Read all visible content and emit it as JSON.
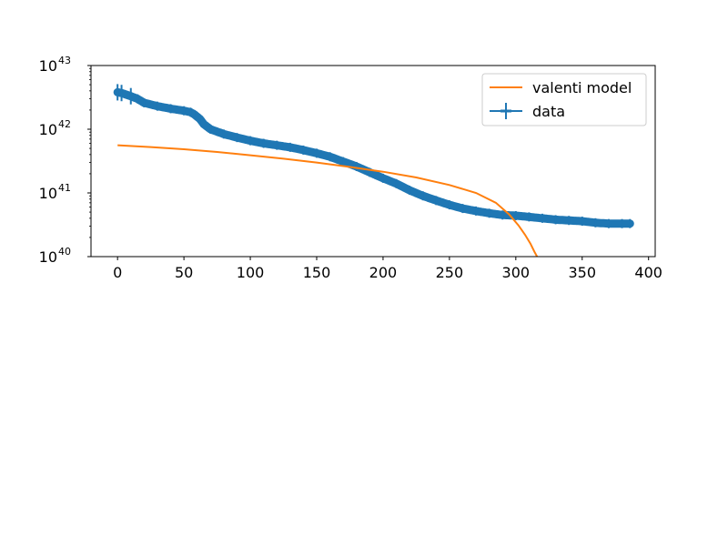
{
  "chart_data": {
    "type": "line",
    "title": "",
    "xlabel": "",
    "ylabel": "",
    "xlim": [
      -20,
      405
    ],
    "ylim": [
      1e+40,
      1e+43
    ],
    "yscale": "log",
    "grid": false,
    "legend_position": "top-right",
    "x_ticks": [
      {
        "value": 0,
        "label": "0"
      },
      {
        "value": 50,
        "label": "50"
      },
      {
        "value": 100,
        "label": "100"
      },
      {
        "value": 150,
        "label": "150"
      },
      {
        "value": 200,
        "label": "200"
      },
      {
        "value": 250,
        "label": "250"
      },
      {
        "value": 300,
        "label": "300"
      },
      {
        "value": 350,
        "label": "350"
      },
      {
        "value": 400,
        "label": "400"
      }
    ],
    "y_ticks": [
      {
        "exp": 40,
        "base": "10",
        "sup": "40"
      },
      {
        "exp": 41,
        "base": "10",
        "sup": "41"
      },
      {
        "exp": 42,
        "base": "10",
        "sup": "42"
      },
      {
        "exp": 43,
        "base": "10",
        "sup": "43"
      }
    ],
    "series": [
      {
        "name": "valenti model",
        "color": "#ff7f0e",
        "style": "line",
        "points": [
          [
            0,
            5.6e+41
          ],
          [
            25,
            5.25e+41
          ],
          [
            50,
            4.85e+41
          ],
          [
            75,
            4.4e+41
          ],
          [
            100,
            3.9e+41
          ],
          [
            125,
            3.45e+41
          ],
          [
            150,
            3e+41
          ],
          [
            175,
            2.55e+41
          ],
          [
            200,
            2.15e+41
          ],
          [
            225,
            1.75e+41
          ],
          [
            250,
            1.33e+41
          ],
          [
            270,
            1e+41
          ],
          [
            285,
            7e+40
          ],
          [
            295,
            4.6e+40
          ],
          [
            302,
            3.1e+40
          ],
          [
            307,
            2.2e+40
          ],
          [
            311,
            1.6e+40
          ],
          [
            314,
            1.2e+40
          ],
          [
            316,
            1e+40
          ]
        ]
      },
      {
        "name": "data",
        "color": "#1f77b4",
        "style": "errorbar",
        "points": [
          [
            0,
            3.8e+42
          ],
          [
            3,
            3.7e+42
          ],
          [
            10,
            3.3e+42
          ],
          [
            15,
            3e+42
          ],
          [
            20,
            2.6e+42
          ],
          [
            30,
            2.3e+42
          ],
          [
            40,
            2.1e+42
          ],
          [
            50,
            1.95e+42
          ],
          [
            55,
            1.85e+42
          ],
          [
            58,
            1.7e+42
          ],
          [
            62,
            1.45e+42
          ],
          [
            65,
            1.2e+42
          ],
          [
            70,
            1e+42
          ],
          [
            80,
            8.4e+41
          ],
          [
            90,
            7.4e+41
          ],
          [
            100,
            6.6e+41
          ],
          [
            110,
            6e+41
          ],
          [
            120,
            5.6e+41
          ],
          [
            130,
            5.2e+41
          ],
          [
            140,
            4.7e+41
          ],
          [
            150,
            4.2e+41
          ],
          [
            160,
            3.7e+41
          ],
          [
            170,
            3.1e+41
          ],
          [
            180,
            2.6e+41
          ],
          [
            190,
            2.1e+41
          ],
          [
            200,
            1.7e+41
          ],
          [
            210,
            1.4e+41
          ],
          [
            220,
            1.1e+41
          ],
          [
            230,
            9e+40
          ],
          [
            240,
            7.6e+40
          ],
          [
            250,
            6.5e+40
          ],
          [
            260,
            5.7e+40
          ],
          [
            270,
            5.2e+40
          ],
          [
            280,
            4.8e+40
          ],
          [
            290,
            4.5e+40
          ],
          [
            300,
            4.4e+40
          ],
          [
            310,
            4.2e+40
          ],
          [
            320,
            4e+40
          ],
          [
            330,
            3.8e+40
          ],
          [
            340,
            3.7e+40
          ],
          [
            350,
            3.6e+40
          ],
          [
            360,
            3.4e+40
          ],
          [
            370,
            3.3e+40
          ],
          [
            380,
            3.3e+40
          ],
          [
            386,
            3.3e+40
          ]
        ]
      }
    ],
    "legend": [
      {
        "label": "valenti model",
        "color": "#ff7f0e",
        "kind": "line"
      },
      {
        "label": "data",
        "color": "#1f77b4",
        "kind": "errorbar"
      }
    ]
  }
}
